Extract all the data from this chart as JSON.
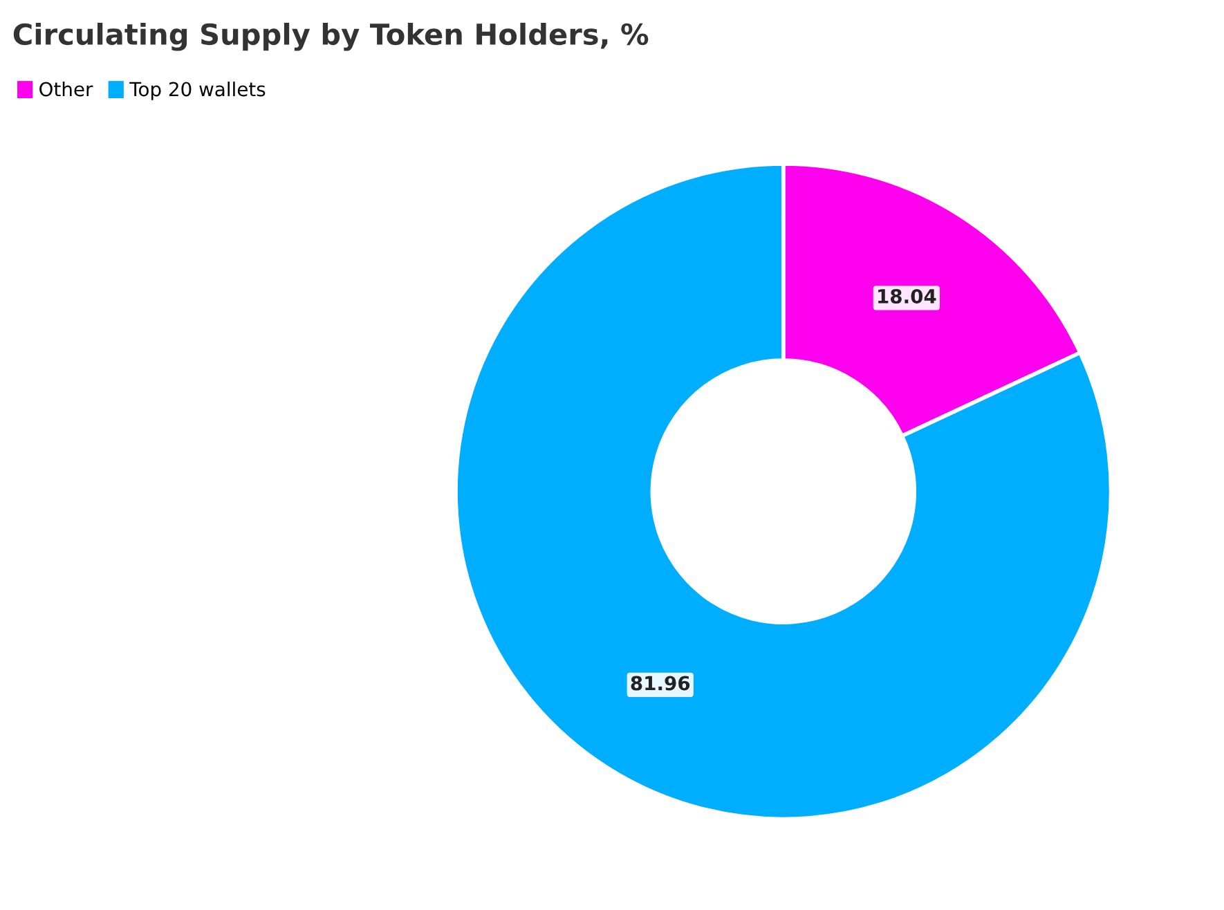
{
  "chart_data": {
    "type": "donut",
    "title": "Circulating Supply by Token Holders, %",
    "categories": [
      "Other",
      "Top 20 wallets"
    ],
    "values": [
      18.04,
      81.96
    ],
    "colors": [
      "#ff00ee",
      "#00aeff"
    ],
    "data_labels": true,
    "legend": "top left"
  }
}
